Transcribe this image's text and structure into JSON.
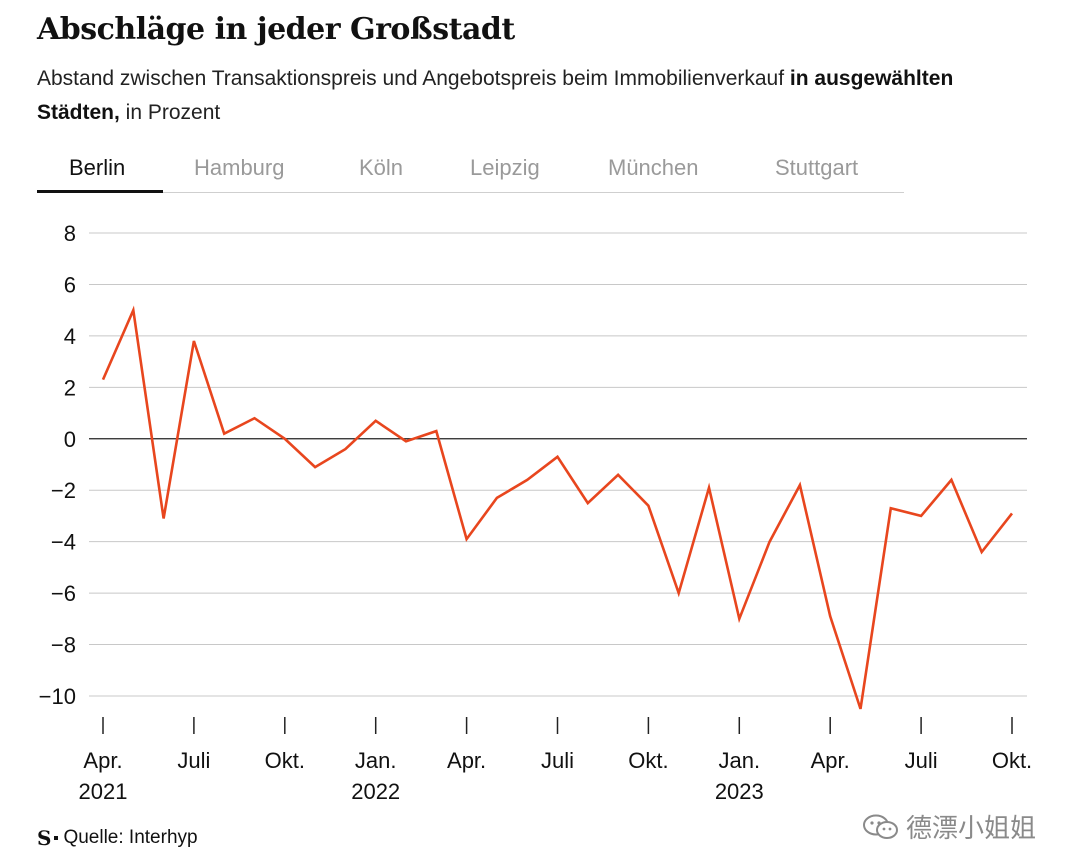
{
  "title": "Abschläge in jeder Großstadt",
  "subtitle_plain": "Abstand zwischen Transaktionspreis und Angebotspreis beim Immobilienverkauf ",
  "subtitle_bold": "in ausgewählten Städten,",
  "subtitle_tail": " in Prozent",
  "tabs": [
    {
      "label": "Berlin",
      "active": true
    },
    {
      "label": "Hamburg",
      "active": false
    },
    {
      "label": "Köln",
      "active": false
    },
    {
      "label": "Leipzig",
      "active": false
    },
    {
      "label": "München",
      "active": false
    },
    {
      "label": "Stuttgart",
      "active": false
    }
  ],
  "source": "Quelle: Interhyp",
  "logo": "S",
  "watermark": "德漂小姐姐",
  "chart_data": {
    "type": "line",
    "x": [
      "2021-04",
      "2021-05",
      "2021-06",
      "2021-07",
      "2021-08",
      "2021-09",
      "2021-10",
      "2021-11",
      "2021-12",
      "2022-01",
      "2022-02",
      "2022-03",
      "2022-04",
      "2022-05",
      "2022-06",
      "2022-07",
      "2022-08",
      "2022-09",
      "2022-10",
      "2022-11",
      "2022-12",
      "2023-01",
      "2023-02",
      "2023-03",
      "2023-04",
      "2023-05",
      "2023-06",
      "2023-07",
      "2023-08",
      "2023-09",
      "2023-10"
    ],
    "series": [
      {
        "values": [
          2.3,
          5.0,
          -3.1,
          3.8,
          0.2,
          0.8,
          0.0,
          -1.1,
          -0.4,
          0.7,
          -0.1,
          0.3,
          -3.9,
          -2.3,
          -1.6,
          -0.7,
          -2.5,
          -1.4,
          -2.6,
          -6.0,
          -1.9,
          -7.0,
          -4.0,
          -1.8,
          -6.9,
          -10.5,
          -2.7,
          -3.0,
          -1.6,
          -4.4,
          -2.9
        ]
      }
    ],
    "ylim": [
      -10,
      8
    ],
    "yticks": [
      8,
      6,
      4,
      2,
      0,
      -2,
      -4,
      -6,
      -8,
      -10
    ],
    "ytick_labels": [
      "8",
      "6",
      "4",
      "2",
      "0",
      "−2",
      "−4",
      "−6",
      "−8",
      "−10"
    ],
    "xticks": [
      {
        "x": "2021-04",
        "label": "Apr.",
        "year": "2021"
      },
      {
        "x": "2021-07",
        "label": "Juli",
        "year": ""
      },
      {
        "x": "2021-10",
        "label": "Okt.",
        "year": ""
      },
      {
        "x": "2022-01",
        "label": "Jan.",
        "year": "2022"
      },
      {
        "x": "2022-04",
        "label": "Apr.",
        "year": ""
      },
      {
        "x": "2022-07",
        "label": "Juli",
        "year": ""
      },
      {
        "x": "2022-10",
        "label": "Okt.",
        "year": ""
      },
      {
        "x": "2023-01",
        "label": "Jan.",
        "year": "2023"
      },
      {
        "x": "2023-04",
        "label": "Apr.",
        "year": ""
      },
      {
        "x": "2023-07",
        "label": "Juli",
        "year": ""
      },
      {
        "x": "2023-10",
        "label": "Okt.",
        "year": ""
      }
    ],
    "line_color": "#e8461e",
    "grid": true
  }
}
